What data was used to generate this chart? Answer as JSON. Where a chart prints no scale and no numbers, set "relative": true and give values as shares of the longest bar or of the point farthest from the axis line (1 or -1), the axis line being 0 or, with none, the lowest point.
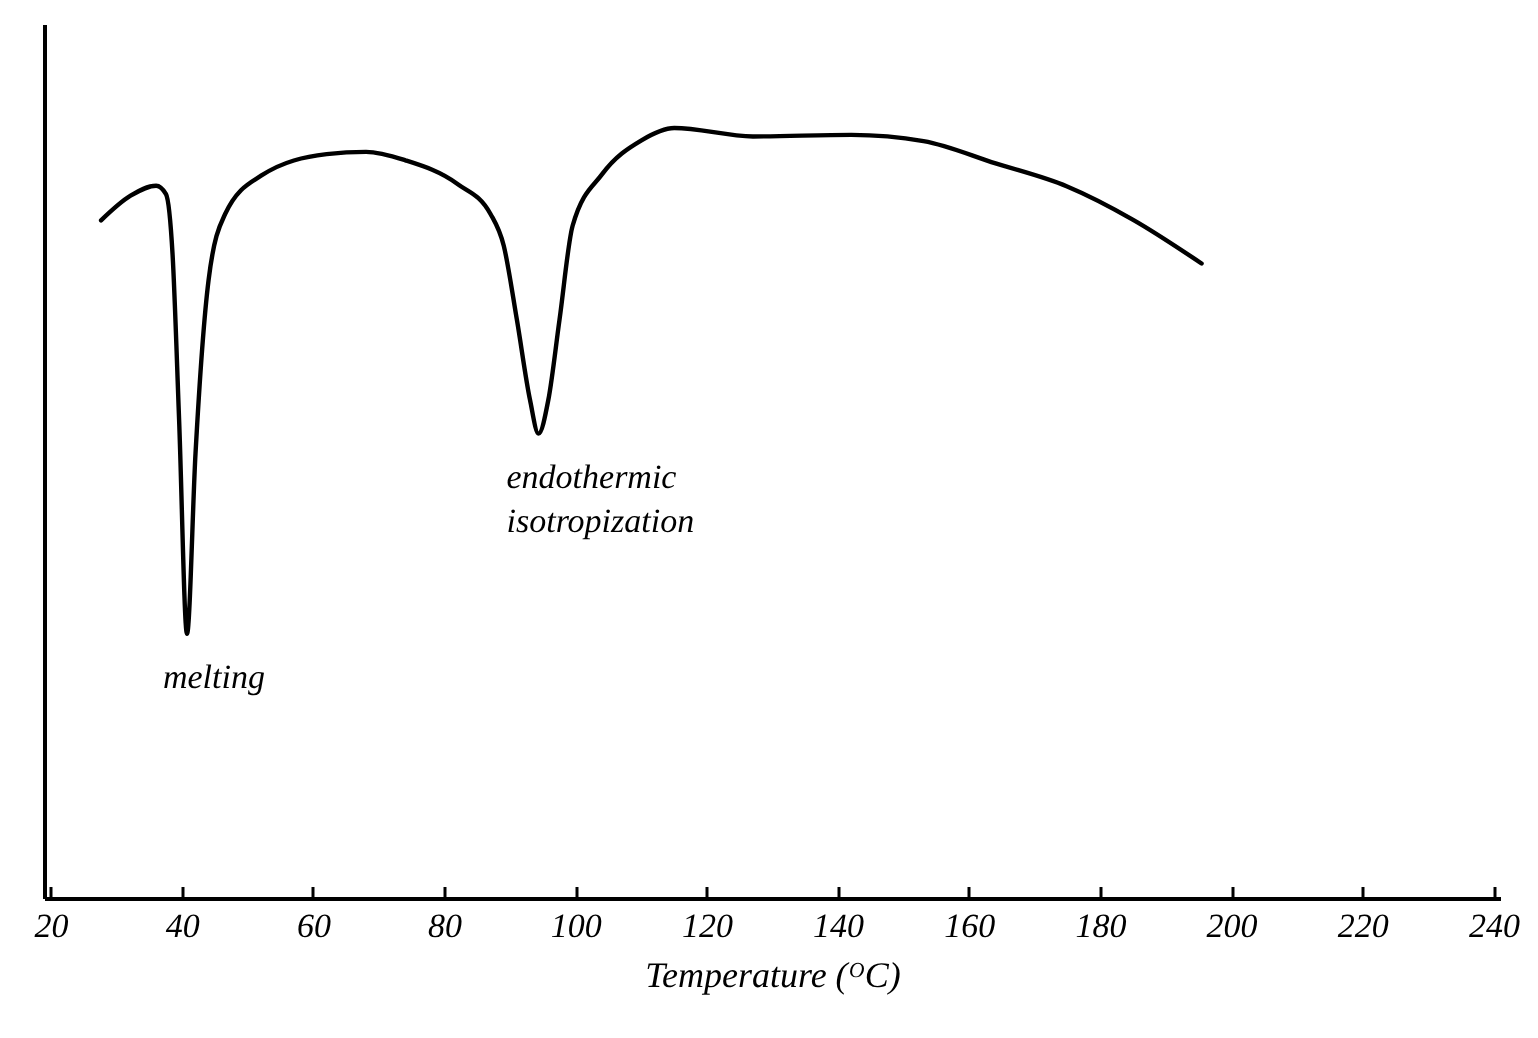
{
  "chart_data": {
    "type": "line",
    "relative": true,
    "xlabel": "Temperature (ᴼC)",
    "xlim": [
      19,
      241
    ],
    "xticks": [
      20,
      40,
      60,
      80,
      100,
      120,
      140,
      160,
      180,
      200,
      220,
      240
    ],
    "grid": false,
    "marker": "none",
    "line_style": "solid",
    "series": [
      {
        "color": "#000000",
        "x": [
          27.7,
          32.2,
          36.1,
          37.6,
          38.6,
          39.6,
          40.8,
          42.1,
          44.1,
          46.6,
          52.1,
          62.1,
          68.1,
          74.1,
          82.1,
          87.1,
          89.1,
          91.1,
          93.1,
          94.4,
          95.9,
          97.6,
          99.6,
          104.1,
          110.1,
          115.1,
          127.1,
          142.1,
          153.1,
          164.1,
          175.0,
          185.0,
          195.5
        ],
        "values": [
          0.88,
          0.912,
          0.925,
          0.914,
          0.836,
          0.621,
          0.343,
          0.577,
          0.803,
          0.888,
          0.938,
          0.966,
          0.969,
          0.958,
          0.927,
          0.888,
          0.847,
          0.751,
          0.647,
          0.603,
          0.647,
          0.751,
          0.873,
          0.94,
          0.984,
          1.0,
          0.989,
          0.991,
          0.983,
          0.954,
          0.924,
          0.881,
          0.824
        ]
      }
    ],
    "annotations": [
      {
        "text": "melting",
        "x": 40.8,
        "y": 0.343
      },
      {
        "text": "endothermic isotropization",
        "x": 94.4,
        "y": 0.603
      }
    ]
  }
}
